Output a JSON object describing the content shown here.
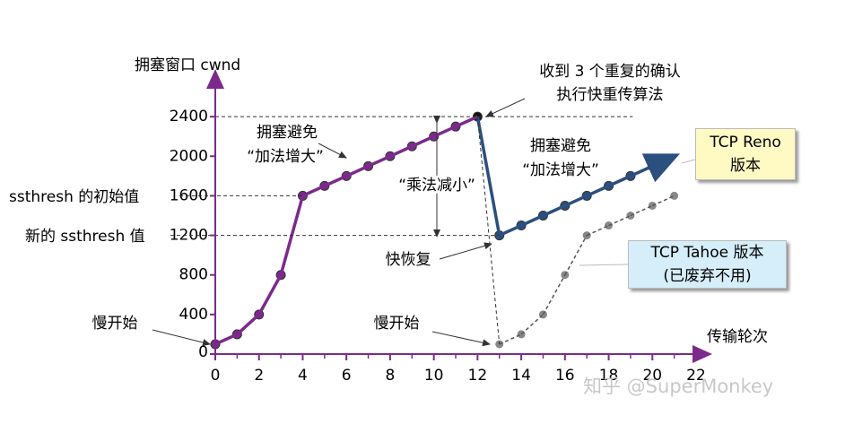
{
  "chart_data": {
    "type": "line",
    "xlim": [
      0,
      22
    ],
    "xticks": [
      0,
      2,
      4,
      6,
      8,
      10,
      12,
      14,
      16,
      18,
      20,
      22
    ],
    "ylim": [
      0,
      2800
    ],
    "yticks": [
      0,
      400,
      800,
      1200,
      1600,
      2000,
      2400
    ],
    "axis_color": "#7b2a8c",
    "series": [
      {
        "name": "TCP Reno 版本",
        "color": "#7b2a8c",
        "recovery_color": "#2b4f7e",
        "recovery_from": 12,
        "box_color": "#fff9c4",
        "x": [
          0,
          1,
          2,
          3,
          4,
          5,
          6,
          7,
          8,
          9,
          10,
          11,
          12,
          13,
          14,
          15,
          16,
          17,
          18,
          19,
          20,
          21
        ],
        "values": [
          100,
          200,
          400,
          800,
          1600,
          1700,
          1800,
          1900,
          2000,
          2100,
          2200,
          2300,
          2400,
          1200,
          1300,
          1400,
          1500,
          1600,
          1700,
          1800,
          1900,
          2000
        ]
      },
      {
        "name": "TCP Tahoe 版本",
        "note": "(已废弃不用)",
        "color": "#888888",
        "dashed": true,
        "box_color": "#d6eefa",
        "x": [
          13,
          14,
          15,
          16,
          17,
          18,
          19,
          20,
          21
        ],
        "values": [
          100,
          200,
          400,
          800,
          1200,
          1300,
          1400,
          1500,
          1600
        ]
      }
    ],
    "annotations": {
      "y_label": "拥塞窗口 cwnd",
      "x_label": "传输轮次",
      "ssthresh_initial": "ssthresh 的初始值",
      "ssthresh_new": "新的 ssthresh 值",
      "fast_retransmit": [
        "收到 3 个重复的确认",
        "执行快重传算法"
      ],
      "avoidance_1": [
        "拥塞避免",
        "“加法增大”"
      ],
      "multiplicative_decrease": "“乘法减小”",
      "avoidance_2": [
        "拥塞避免",
        "“加法增大”"
      ],
      "fast_recovery": "快恢复",
      "slow_start_1": "慢开始",
      "slow_start_2": "慢开始",
      "watermark": "知乎 @SuperMonkey"
    }
  }
}
